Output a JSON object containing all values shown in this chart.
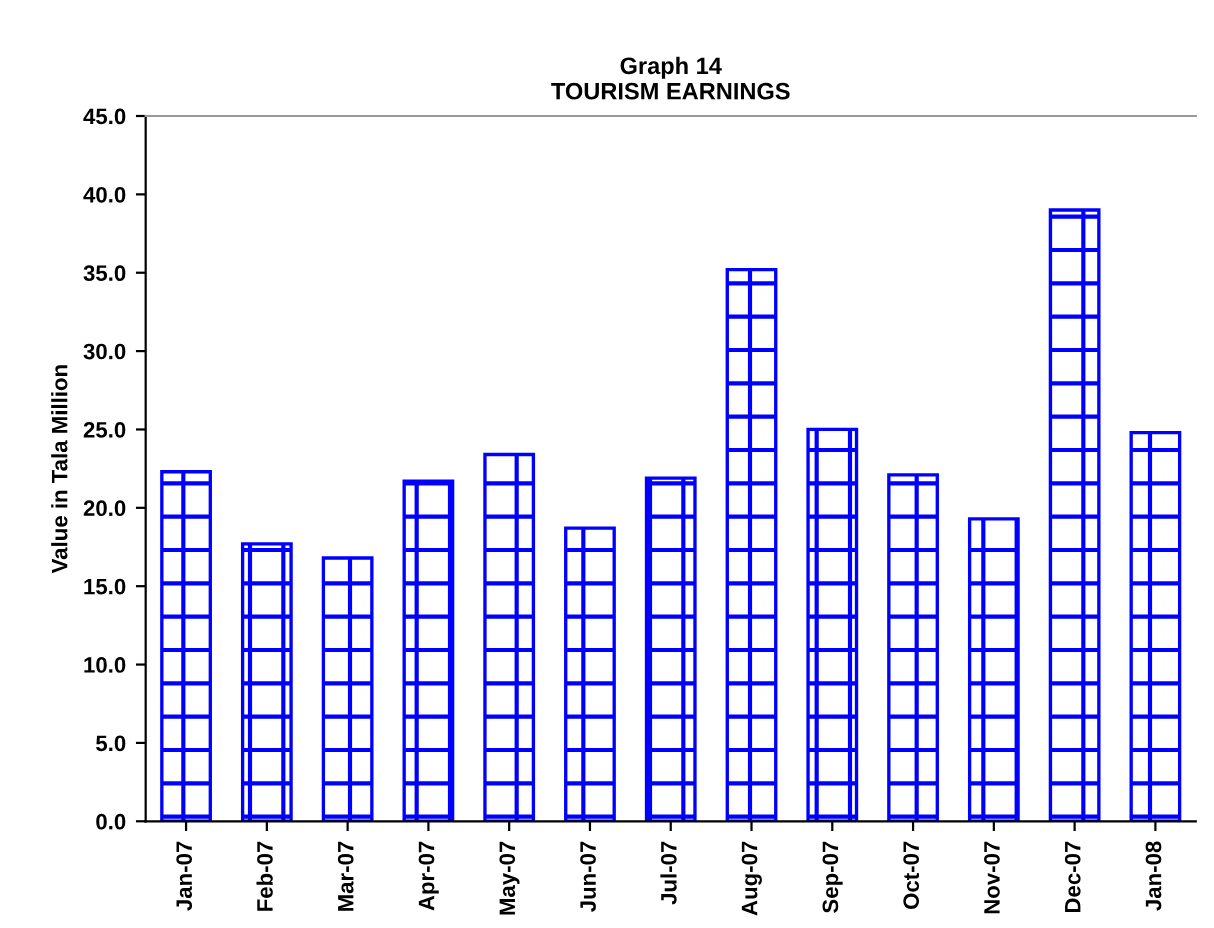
{
  "chart_data": {
    "type": "bar",
    "title": "Graph 14\nTOURISM EARNINGS",
    "ylabel": "Value in Tala Million",
    "categories": [
      "Jan-07",
      "Feb-07",
      "Mar-07",
      "Apr-07",
      "May-07",
      "Jun-07",
      "Jul-07",
      "Aug-07",
      "Sep-07",
      "Oct-07",
      "Nov-07",
      "Dec-07",
      "Jan-08"
    ],
    "values": [
      22.3,
      17.7,
      16.8,
      21.7,
      23.4,
      18.7,
      21.9,
      35.2,
      25.0,
      22.1,
      19.3,
      39.0,
      24.8
    ],
    "color": "#0000ff",
    "ylim": [
      0,
      45
    ],
    "yticks": [
      {
        "value": 0,
        "label": "0.0"
      },
      {
        "value": 5,
        "label": "5.0"
      },
      {
        "value": 10,
        "label": "10.0"
      },
      {
        "value": 15,
        "label": "15.0"
      },
      {
        "value": 20,
        "label": "20.0"
      },
      {
        "value": 25,
        "label": "25.0"
      },
      {
        "value": 30,
        "label": "30.0"
      },
      {
        "value": 35,
        "label": "35.0"
      },
      {
        "value": 40,
        "label": "40.0"
      },
      {
        "value": 45,
        "label": "45.0"
      }
    ],
    "grid": false
  }
}
